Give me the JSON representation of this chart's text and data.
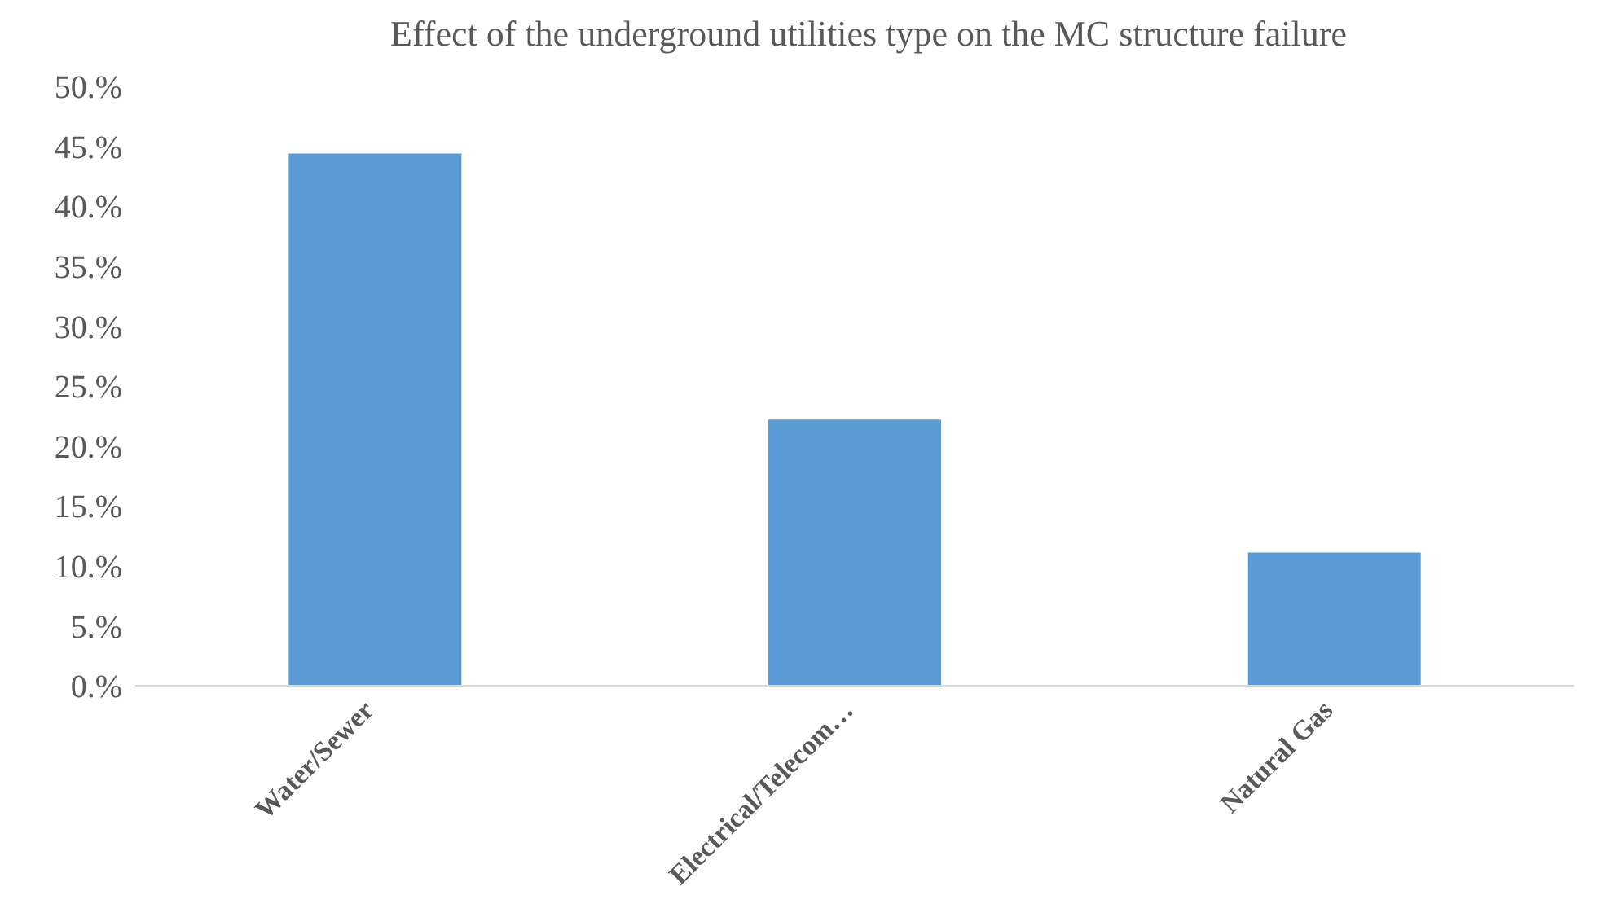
{
  "chart_data": {
    "type": "bar",
    "title": "Effect of the underground utilities type on the MC structure failure",
    "categories": [
      "Water/Sewer",
      "Electrical/Telecom…",
      "Natural Gas"
    ],
    "values": [
      44.4,
      22.2,
      11.1
    ],
    "color": "#5b9bd5",
    "ylim": [
      0,
      50
    ],
    "yticks": [
      {
        "value": 0,
        "label": "0.%"
      },
      {
        "value": 5,
        "label": "5.%"
      },
      {
        "value": 10,
        "label": "10.%"
      },
      {
        "value": 15,
        "label": "15.%"
      },
      {
        "value": 20,
        "label": "20.%"
      },
      {
        "value": 25,
        "label": "25.%"
      },
      {
        "value": 30,
        "label": "30.%"
      },
      {
        "value": 35,
        "label": "35.%"
      },
      {
        "value": 40,
        "label": "40.%"
      },
      {
        "value": 45,
        "label": "45.%"
      },
      {
        "value": 50,
        "label": "50.%"
      }
    ],
    "grid": false
  }
}
